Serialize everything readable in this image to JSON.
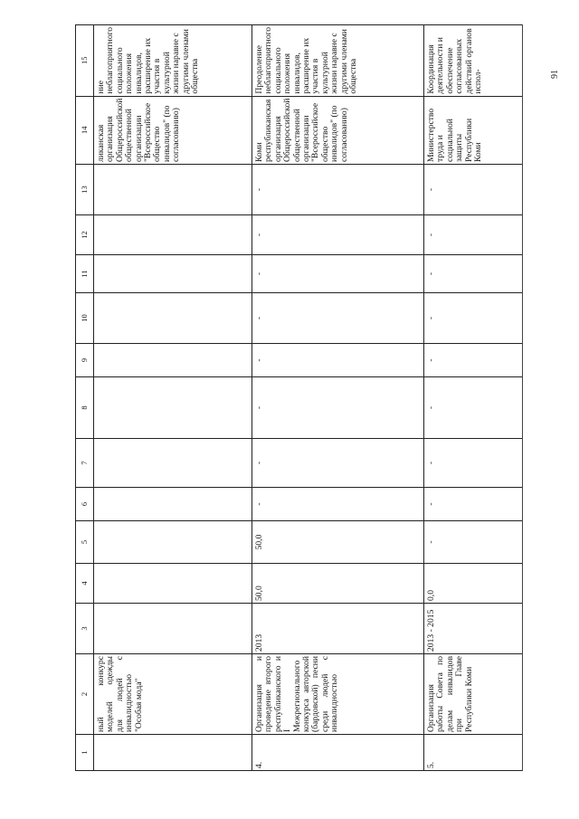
{
  "page_number": "91",
  "table": {
    "column_numbers": [
      "1",
      "2",
      "3",
      "4",
      "5",
      "6",
      "7",
      "8",
      "9",
      "10",
      "11",
      "12",
      "13",
      "14",
      "15"
    ],
    "rows": [
      {
        "cells": [
          "",
          "ный конкурс моделей одежды для людей с инвалидностью \"Особая мода\"",
          "",
          "",
          "",
          "",
          "",
          "",
          "",
          "",
          "",
          "",
          "",
          "ликанская организация Общероссийской общественной организации \"Всероссийское общество инвалидов\" (по согласованию)",
          "ние неблагоприятного социального положения инвалидов, расширение их участия в культурной жизни наравне с другими членами общества"
        ]
      },
      {
        "cells": [
          "4.",
          "Организация и проведение второго республиканского и I Межрегионального конкурса авторской (бардовской) песни среди людей с инвалидностью",
          "2013",
          "50,0",
          "50,0",
          "-",
          "-",
          "-",
          "-",
          "-",
          "-",
          "-",
          "-",
          "Коми республиканская организация Общероссийской общественной организации \"Всероссийское общество инвалидов\" (по согласованию)",
          "Преодоление неблагоприятного социального положения инвалидов, расширение их участия в культурной жизни наравне с другими членами общества"
        ]
      },
      {
        "cells": [
          "5.",
          "Организация работы Совета по делам инвалидов при Главе Республики Коми",
          "2013 - 2015",
          "0,0",
          "-",
          "-",
          "-",
          "-",
          "-",
          "-",
          "-",
          "-",
          "-",
          "Министерство труда и социальной защиты Республики Коми",
          "Координация деятельности и обеспечение согласованных действий органов испол-"
        ]
      }
    ]
  }
}
